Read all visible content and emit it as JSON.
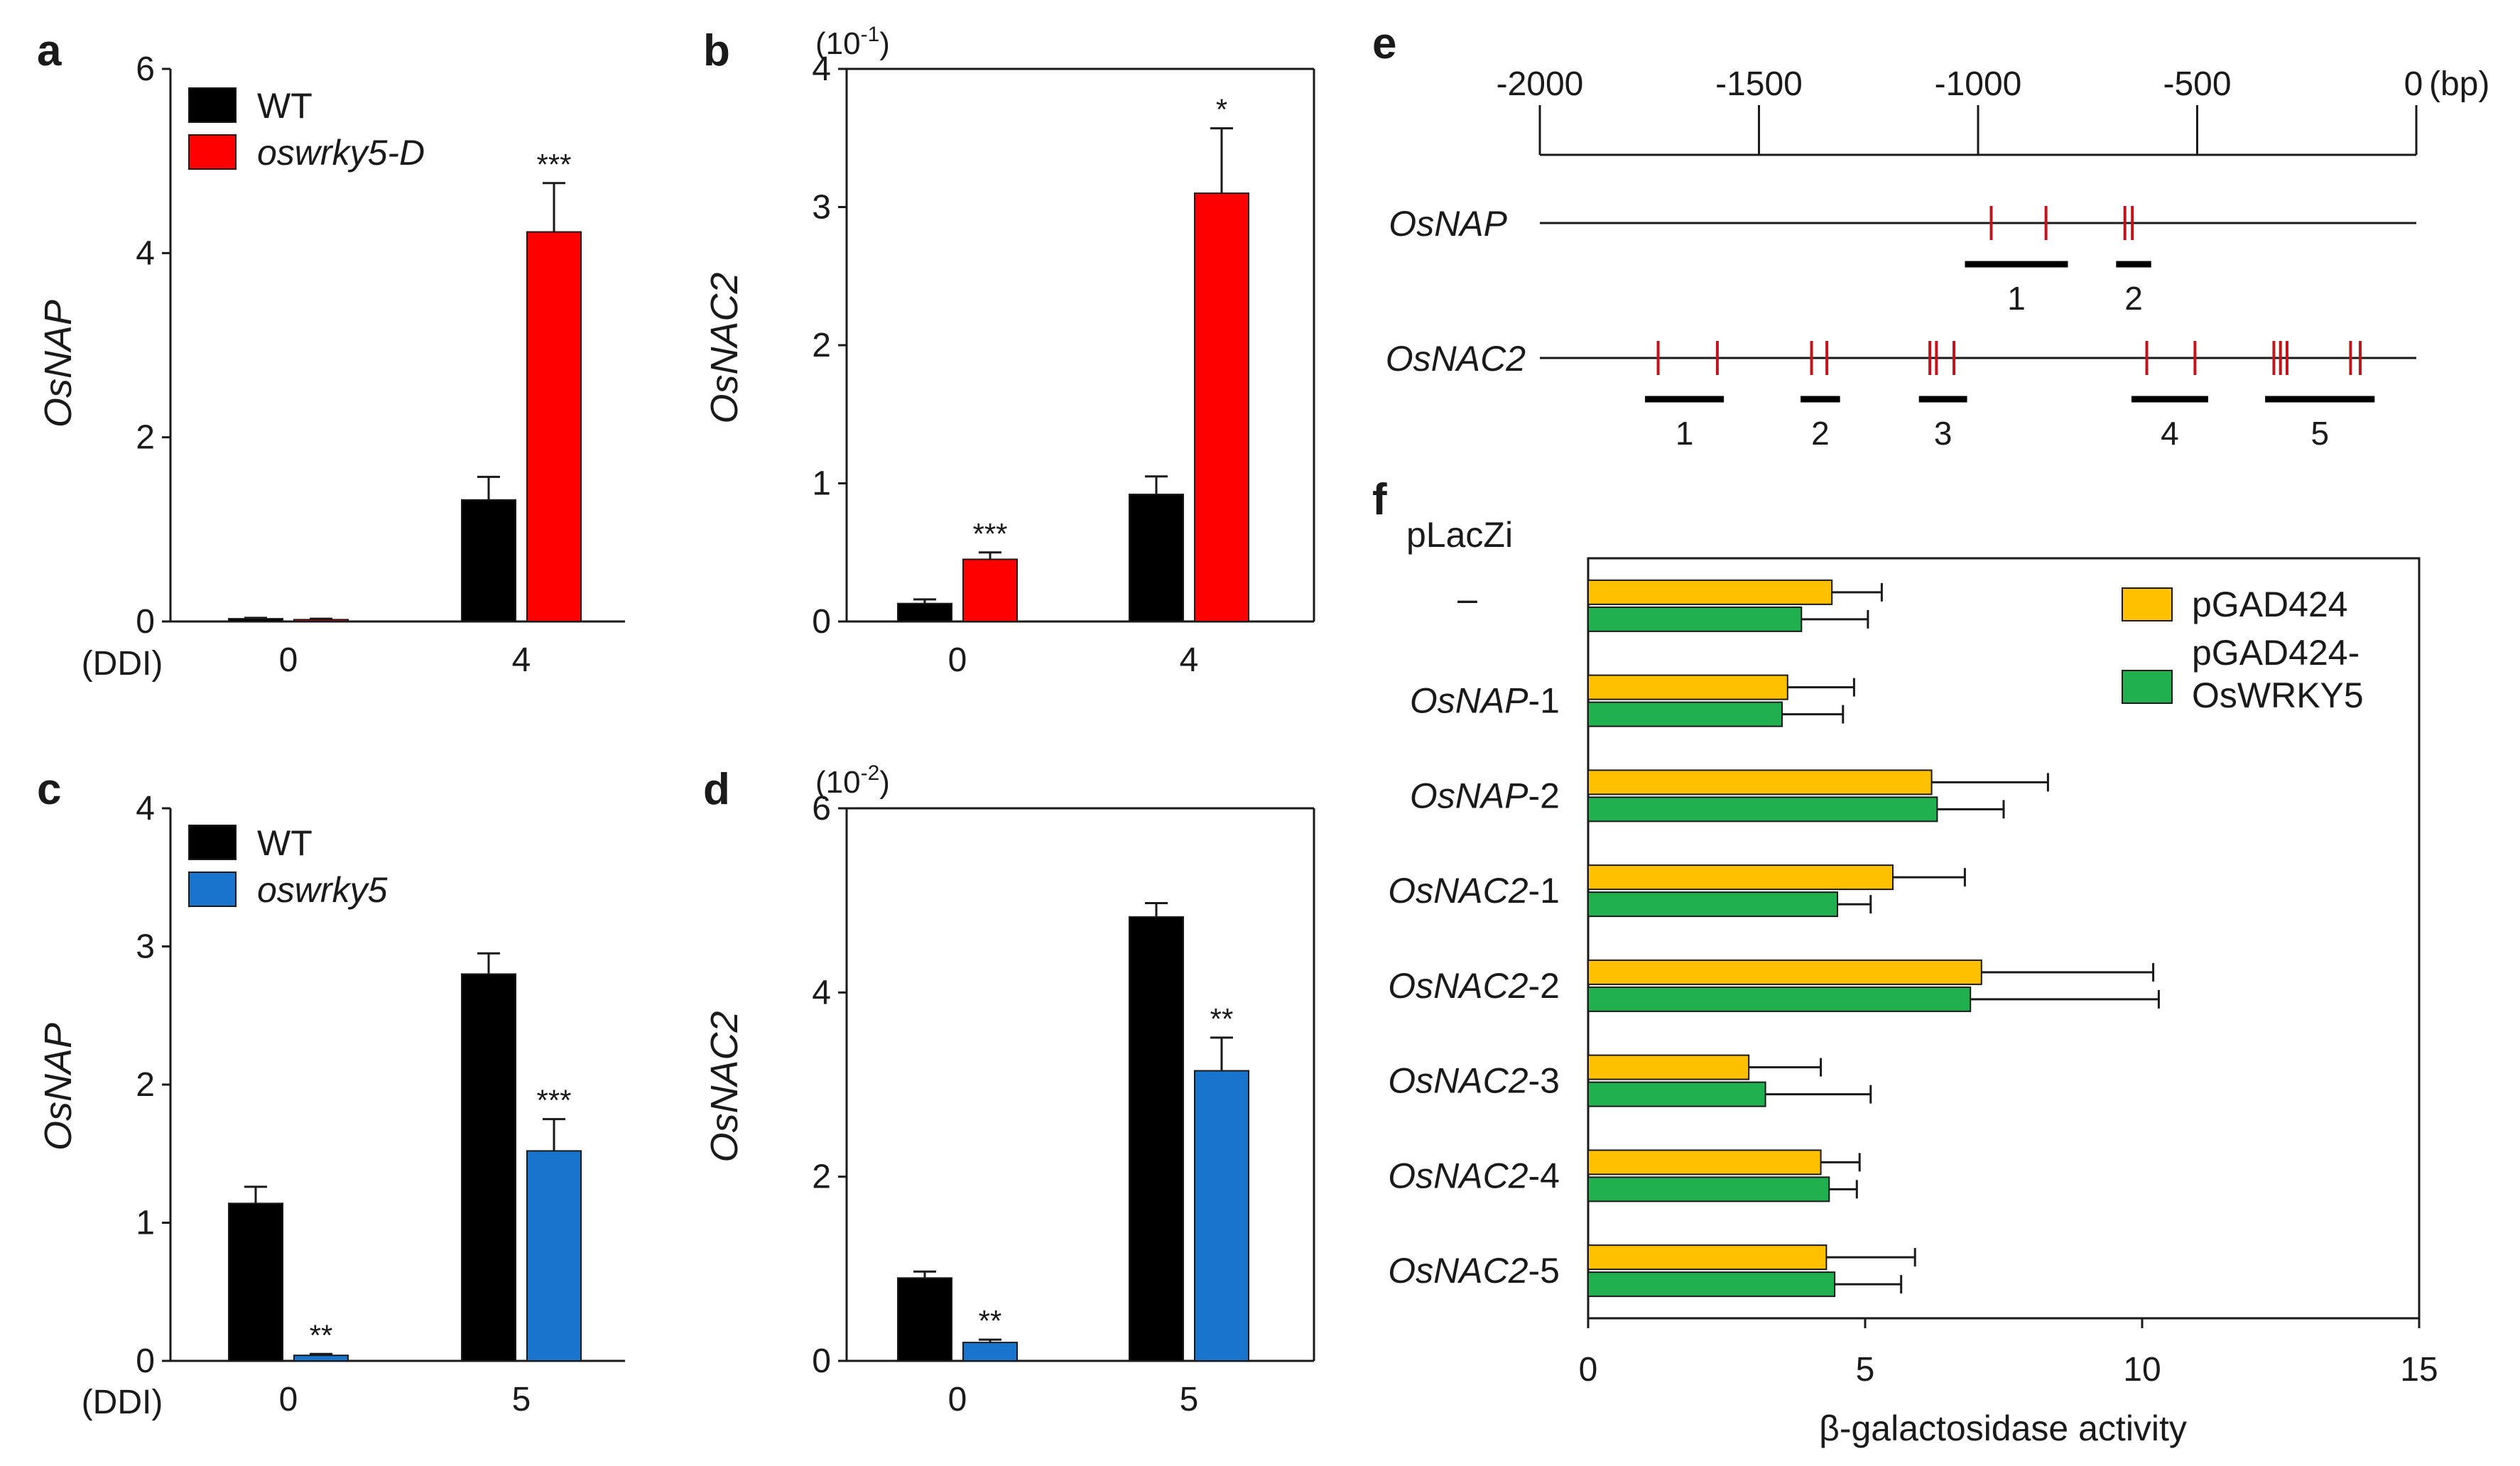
{
  "chart_data": [
    {
      "id": "a",
      "type": "bar",
      "panel_label": "a",
      "ylabel": "OsNAP",
      "ylim": [
        0,
        6
      ],
      "yticks": [
        "0",
        "2",
        "4",
        "6"
      ],
      "x_prefix": "(DDI)",
      "categories": [
        "0",
        "4"
      ],
      "series": [
        {
          "name": "WT",
          "values": [
            0.03,
            1.32
          ],
          "errors": [
            0.01,
            0.25
          ]
        },
        {
          "name": "oswrky5-D",
          "values": [
            0.02,
            4.23
          ],
          "errors": [
            0.01,
            0.53
          ]
        }
      ],
      "annotations": [
        {
          "category": 1,
          "series": 1,
          "text": "***"
        }
      ],
      "legend": [
        "WT",
        "oswrky5-D"
      ]
    },
    {
      "id": "b",
      "type": "bar",
      "panel_label": "b",
      "ylabel": "OsNAC2",
      "multiplier": "(10",
      "multiplier_exp": "-1",
      "multiplier_close": ")",
      "ylim": [
        0,
        4
      ],
      "yticks": [
        "0",
        "1",
        "2",
        "3",
        "4"
      ],
      "categories": [
        "0",
        "4"
      ],
      "series": [
        {
          "name": "WT",
          "values": [
            0.13,
            0.92
          ],
          "errors": [
            0.03,
            0.13
          ]
        },
        {
          "name": "oswrky5-D",
          "values": [
            0.45,
            3.1
          ],
          "errors": [
            0.05,
            0.47
          ]
        }
      ],
      "annotations": [
        {
          "category": 0,
          "series": 1,
          "text": "***"
        },
        {
          "category": 1,
          "series": 1,
          "text": "*"
        }
      ]
    },
    {
      "id": "c",
      "type": "bar",
      "panel_label": "c",
      "ylabel": "OsNAP",
      "ylim": [
        0,
        4
      ],
      "yticks": [
        "0",
        "1",
        "2",
        "3",
        "4"
      ],
      "x_prefix": "(DDI)",
      "categories": [
        "0",
        "5"
      ],
      "series": [
        {
          "name": "WT",
          "values": [
            1.14,
            2.8
          ],
          "errors": [
            0.12,
            0.15
          ]
        },
        {
          "name": "oswrky5",
          "values": [
            0.04,
            1.52
          ],
          "errors": [
            0.01,
            0.23
          ]
        }
      ],
      "annotations": [
        {
          "category": 0,
          "series": 1,
          "text": "**"
        },
        {
          "category": 1,
          "series": 1,
          "text": "***"
        }
      ],
      "legend": [
        "WT",
        "oswrky5"
      ]
    },
    {
      "id": "d",
      "type": "bar",
      "panel_label": "d",
      "ylabel": "OsNAC2",
      "multiplier": "(10",
      "multiplier_exp": "-2",
      "multiplier_close": ")",
      "ylim": [
        0,
        6
      ],
      "yticks": [
        "0",
        "2",
        "4",
        "6"
      ],
      "categories": [
        "0",
        "5"
      ],
      "series": [
        {
          "name": "WT",
          "values": [
            0.9,
            4.82
          ],
          "errors": [
            0.07,
            0.15
          ]
        },
        {
          "name": "oswrky5",
          "values": [
            0.2,
            3.15
          ],
          "errors": [
            0.03,
            0.36
          ]
        }
      ],
      "annotations": [
        {
          "category": 0,
          "series": 1,
          "text": "**"
        },
        {
          "category": 1,
          "series": 1,
          "text": "**"
        }
      ]
    },
    {
      "id": "f",
      "type": "bar",
      "orientation": "horizontal",
      "panel_label": "f",
      "group_title": "pLacZi",
      "xlabel": "β-galactosidase activity",
      "xlim": [
        0,
        15
      ],
      "xticks": [
        "0",
        "5",
        "10",
        "15"
      ],
      "categories": [
        {
          "name": "",
          "suffix": "–"
        },
        {
          "name": "OsNAP",
          "suffix": "-1"
        },
        {
          "name": "OsNAP",
          "suffix": "-2"
        },
        {
          "name": "OsNAC2",
          "suffix": "-1"
        },
        {
          "name": "OsNAC2",
          "suffix": "-2"
        },
        {
          "name": "OsNAC2",
          "suffix": "-3"
        },
        {
          "name": "OsNAC2",
          "suffix": "-4"
        },
        {
          "name": "OsNAC2",
          "suffix": "-5"
        }
      ],
      "series": [
        {
          "name": "pGAD424",
          "values": [
            4.4,
            3.6,
            6.2,
            5.5,
            7.1,
            2.9,
            4.2,
            4.3
          ],
          "errors": [
            0.9,
            1.2,
            2.1,
            1.3,
            3.1,
            1.3,
            0.7,
            1.6
          ]
        },
        {
          "name": "pGAD424-OsWRKY5",
          "values": [
            3.85,
            3.5,
            6.3,
            4.5,
            6.9,
            3.2,
            4.35,
            4.45
          ],
          "errors": [
            1.2,
            1.1,
            1.2,
            0.6,
            3.4,
            1.9,
            0.5,
            1.2
          ]
        }
      ],
      "legend": [
        "pGAD424",
        "pGAD424-",
        "OsWRKY5"
      ]
    }
  ],
  "promoter_map": {
    "panel_label": "e",
    "scale_ticks": [
      "-2000",
      "-1500",
      "-1000",
      "-500",
      "0"
    ],
    "scale_unit": "(bp)",
    "genes": [
      {
        "name": "OsNAP",
        "sites_bp": [
          -970,
          -845,
          -665,
          -648
        ],
        "fragments": [
          {
            "label": "1",
            "start_bp": -1030,
            "end_bp": -795
          },
          {
            "label": "2",
            "start_bp": -685,
            "end_bp": -605
          }
        ]
      },
      {
        "name": "OsNAC2",
        "sites_bp": [
          -1730,
          -1595,
          -1380,
          -1345,
          -1110,
          -1095,
          -1055,
          -615,
          -505,
          -325,
          -310,
          -295,
          -150,
          -128
        ],
        "fragments": [
          {
            "label": "1",
            "start_bp": -1760,
            "end_bp": -1580
          },
          {
            "label": "2",
            "start_bp": -1405,
            "end_bp": -1315
          },
          {
            "label": "3",
            "start_bp": -1135,
            "end_bp": -1025
          },
          {
            "label": "4",
            "start_bp": -650,
            "end_bp": -475
          },
          {
            "label": "5",
            "start_bp": -345,
            "end_bp": -95
          }
        ]
      }
    ]
  },
  "colors": {
    "wt": "#000000",
    "oswrky5_d": "#ff0000",
    "oswrky5": "#1874cd",
    "pgad424": "#ffc000",
    "pgad424_oswrky5": "#20b050",
    "site": "#c0141c"
  }
}
